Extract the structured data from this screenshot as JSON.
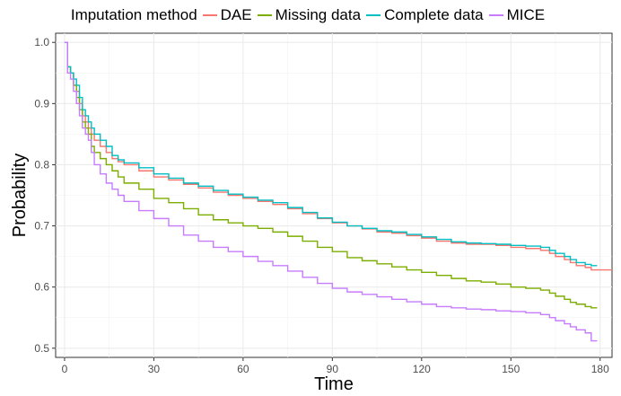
{
  "legend": {
    "title": "Imputation method",
    "items": [
      {
        "label": "DAE",
        "color": "#f8766d"
      },
      {
        "label": "Missing data",
        "color": "#7cae00"
      },
      {
        "label": "Complete data",
        "color": "#00bfc4"
      },
      {
        "label": "MICE",
        "color": "#c77cff"
      }
    ]
  },
  "chart_data": {
    "type": "line",
    "step": true,
    "xlabel": "Time",
    "ylabel": "Probability",
    "xlim": [
      -3,
      184
    ],
    "ylim": [
      0.485,
      1.015
    ],
    "xticks": [
      0,
      30,
      60,
      90,
      120,
      150,
      180
    ],
    "yticks": [
      0.5,
      0.6,
      0.7,
      0.8,
      0.9,
      1.0
    ],
    "ytick_labels": [
      "0.5",
      "0.6",
      "0.7",
      "0.8",
      "0.9",
      "1.0"
    ],
    "grid": true,
    "legend_position": "top",
    "series": [
      {
        "name": "DAE",
        "color": "#f8766d",
        "x": [
          0,
          1,
          2,
          3,
          4,
          5,
          6,
          7,
          8,
          9,
          10,
          12,
          14,
          16,
          18,
          20,
          25,
          30,
          35,
          40,
          45,
          50,
          55,
          60,
          65,
          70,
          75,
          80,
          85,
          90,
          95,
          100,
          105,
          110,
          115,
          120,
          125,
          130,
          135,
          140,
          145,
          150,
          155,
          160,
          163,
          165,
          168,
          170,
          172,
          175,
          177,
          179,
          181,
          184
        ],
        "y": [
          1.0,
          0.96,
          0.95,
          0.93,
          0.92,
          0.9,
          0.88,
          0.87,
          0.86,
          0.85,
          0.84,
          0.83,
          0.82,
          0.81,
          0.805,
          0.8,
          0.79,
          0.78,
          0.775,
          0.768,
          0.762,
          0.755,
          0.75,
          0.745,
          0.74,
          0.735,
          0.728,
          0.72,
          0.712,
          0.705,
          0.7,
          0.695,
          0.69,
          0.688,
          0.684,
          0.68,
          0.675,
          0.672,
          0.67,
          0.67,
          0.668,
          0.665,
          0.663,
          0.66,
          0.655,
          0.65,
          0.645,
          0.64,
          0.635,
          0.632,
          0.628,
          0.628,
          0.628,
          0.628
        ]
      },
      {
        "name": "Missing data",
        "color": "#7cae00",
        "x": [
          0,
          1,
          2,
          3,
          4,
          5,
          6,
          7,
          8,
          9,
          10,
          12,
          14,
          16,
          18,
          20,
          25,
          30,
          35,
          40,
          45,
          50,
          55,
          60,
          65,
          70,
          75,
          80,
          85,
          90,
          95,
          100,
          105,
          110,
          115,
          120,
          125,
          130,
          135,
          140,
          145,
          150,
          155,
          160,
          163,
          165,
          168,
          170,
          172,
          175,
          177,
          179
        ],
        "y": [
          1.0,
          0.96,
          0.95,
          0.93,
          0.91,
          0.89,
          0.87,
          0.86,
          0.85,
          0.83,
          0.82,
          0.81,
          0.8,
          0.79,
          0.78,
          0.77,
          0.76,
          0.745,
          0.738,
          0.728,
          0.718,
          0.71,
          0.705,
          0.7,
          0.696,
          0.69,
          0.683,
          0.675,
          0.665,
          0.658,
          0.648,
          0.643,
          0.638,
          0.633,
          0.628,
          0.624,
          0.619,
          0.614,
          0.61,
          0.608,
          0.605,
          0.6,
          0.598,
          0.595,
          0.59,
          0.585,
          0.58,
          0.575,
          0.572,
          0.568,
          0.566,
          0.566
        ]
      },
      {
        "name": "Complete data",
        "color": "#00bfc4",
        "x": [
          0,
          1,
          2,
          3,
          4,
          5,
          6,
          7,
          8,
          9,
          10,
          12,
          14,
          16,
          18,
          20,
          25,
          30,
          35,
          40,
          45,
          50,
          55,
          60,
          65,
          70,
          75,
          80,
          85,
          90,
          95,
          100,
          105,
          110,
          115,
          120,
          125,
          130,
          135,
          140,
          145,
          150,
          155,
          160,
          163,
          165,
          168,
          170,
          172,
          175,
          177,
          179
        ],
        "y": [
          1.0,
          0.96,
          0.95,
          0.94,
          0.93,
          0.91,
          0.89,
          0.88,
          0.87,
          0.86,
          0.85,
          0.84,
          0.83,
          0.815,
          0.808,
          0.803,
          0.795,
          0.785,
          0.778,
          0.77,
          0.765,
          0.758,
          0.752,
          0.747,
          0.742,
          0.738,
          0.73,
          0.722,
          0.713,
          0.706,
          0.7,
          0.696,
          0.692,
          0.69,
          0.686,
          0.682,
          0.678,
          0.674,
          0.672,
          0.671,
          0.67,
          0.668,
          0.667,
          0.665,
          0.66,
          0.655,
          0.65,
          0.645,
          0.64,
          0.637,
          0.635,
          0.635
        ]
      },
      {
        "name": "MICE",
        "color": "#c77cff",
        "x": [
          0,
          1,
          2,
          3,
          4,
          5,
          6,
          7,
          8,
          9,
          10,
          12,
          14,
          16,
          18,
          20,
          25,
          30,
          35,
          40,
          45,
          50,
          55,
          60,
          65,
          70,
          75,
          80,
          85,
          90,
          95,
          100,
          105,
          110,
          115,
          120,
          125,
          130,
          135,
          140,
          145,
          150,
          155,
          160,
          163,
          165,
          168,
          170,
          172,
          175,
          177,
          179
        ],
        "y": [
          1.0,
          0.95,
          0.94,
          0.92,
          0.9,
          0.88,
          0.86,
          0.85,
          0.84,
          0.82,
          0.8,
          0.785,
          0.77,
          0.76,
          0.75,
          0.74,
          0.725,
          0.712,
          0.7,
          0.685,
          0.675,
          0.665,
          0.658,
          0.65,
          0.642,
          0.635,
          0.626,
          0.616,
          0.606,
          0.598,
          0.592,
          0.588,
          0.584,
          0.58,
          0.576,
          0.572,
          0.568,
          0.566,
          0.564,
          0.563,
          0.561,
          0.56,
          0.558,
          0.555,
          0.55,
          0.545,
          0.54,
          0.535,
          0.53,
          0.525,
          0.512,
          0.512
        ]
      }
    ]
  }
}
